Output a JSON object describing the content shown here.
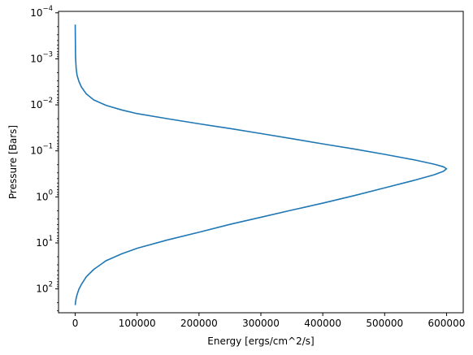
{
  "chart_data": {
    "type": "line",
    "title": "",
    "xlabel": "Energy [ergs/cm^2/s]",
    "ylabel": "Pressure [Bars]",
    "xlim": [
      -27000,
      627000
    ],
    "ylim": [
      330,
      9.3e-05
    ],
    "yscale": "log",
    "y_inverted": true,
    "grid": false,
    "legend": "none",
    "x_ticks": [
      0,
      100000,
      200000,
      300000,
      400000,
      500000,
      600000
    ],
    "x_tick_labels": [
      "0",
      "100000",
      "200000",
      "300000",
      "400000",
      "500000",
      "600000"
    ],
    "y_ticks": [
      0.0001,
      0.001,
      0.01,
      0.1,
      1,
      10,
      100
    ],
    "y_tick_labels": [
      {
        "base": "10",
        "exp": "−4"
      },
      {
        "base": "10",
        "exp": "−3"
      },
      {
        "base": "10",
        "exp": "−2"
      },
      {
        "base": "10",
        "exp": "−1"
      },
      {
        "base": "10",
        "exp": "0"
      },
      {
        "base": "10",
        "exp": "1"
      },
      {
        "base": "10",
        "exp": "2"
      }
    ],
    "series": [
      {
        "color": "#1f77b4",
        "x": [
          0,
          500,
          1500,
          3000,
          6000,
          10000,
          18000,
          30000,
          50000,
          75000,
          100000,
          150000,
          200000,
          250000,
          300000,
          350000,
          400000,
          450000,
          500000,
          550000,
          580000,
          595000,
          600000,
          595000,
          580000,
          550000,
          500000,
          450000,
          400000,
          350000,
          300000,
          250000,
          200000,
          150000,
          100000,
          75000,
          50000,
          30000,
          18000,
          10000,
          6000,
          3000,
          1500,
          500,
          0
        ],
        "y": [
          0.00018,
          0.0009,
          0.0016,
          0.0023,
          0.0031,
          0.0041,
          0.0058,
          0.0078,
          0.0103,
          0.0129,
          0.0155,
          0.0201,
          0.0258,
          0.0327,
          0.042,
          0.0543,
          0.0706,
          0.0908,
          0.119,
          0.159,
          0.195,
          0.222,
          0.245,
          0.278,
          0.331,
          0.429,
          0.636,
          0.944,
          1.37,
          1.94,
          2.77,
          3.96,
          5.87,
          8.56,
          13.1,
          17.3,
          24.3,
          37.7,
          54.3,
          79.8,
          101.0,
          133.0,
          160.0,
          193.0,
          225.0
        ]
      }
    ]
  }
}
